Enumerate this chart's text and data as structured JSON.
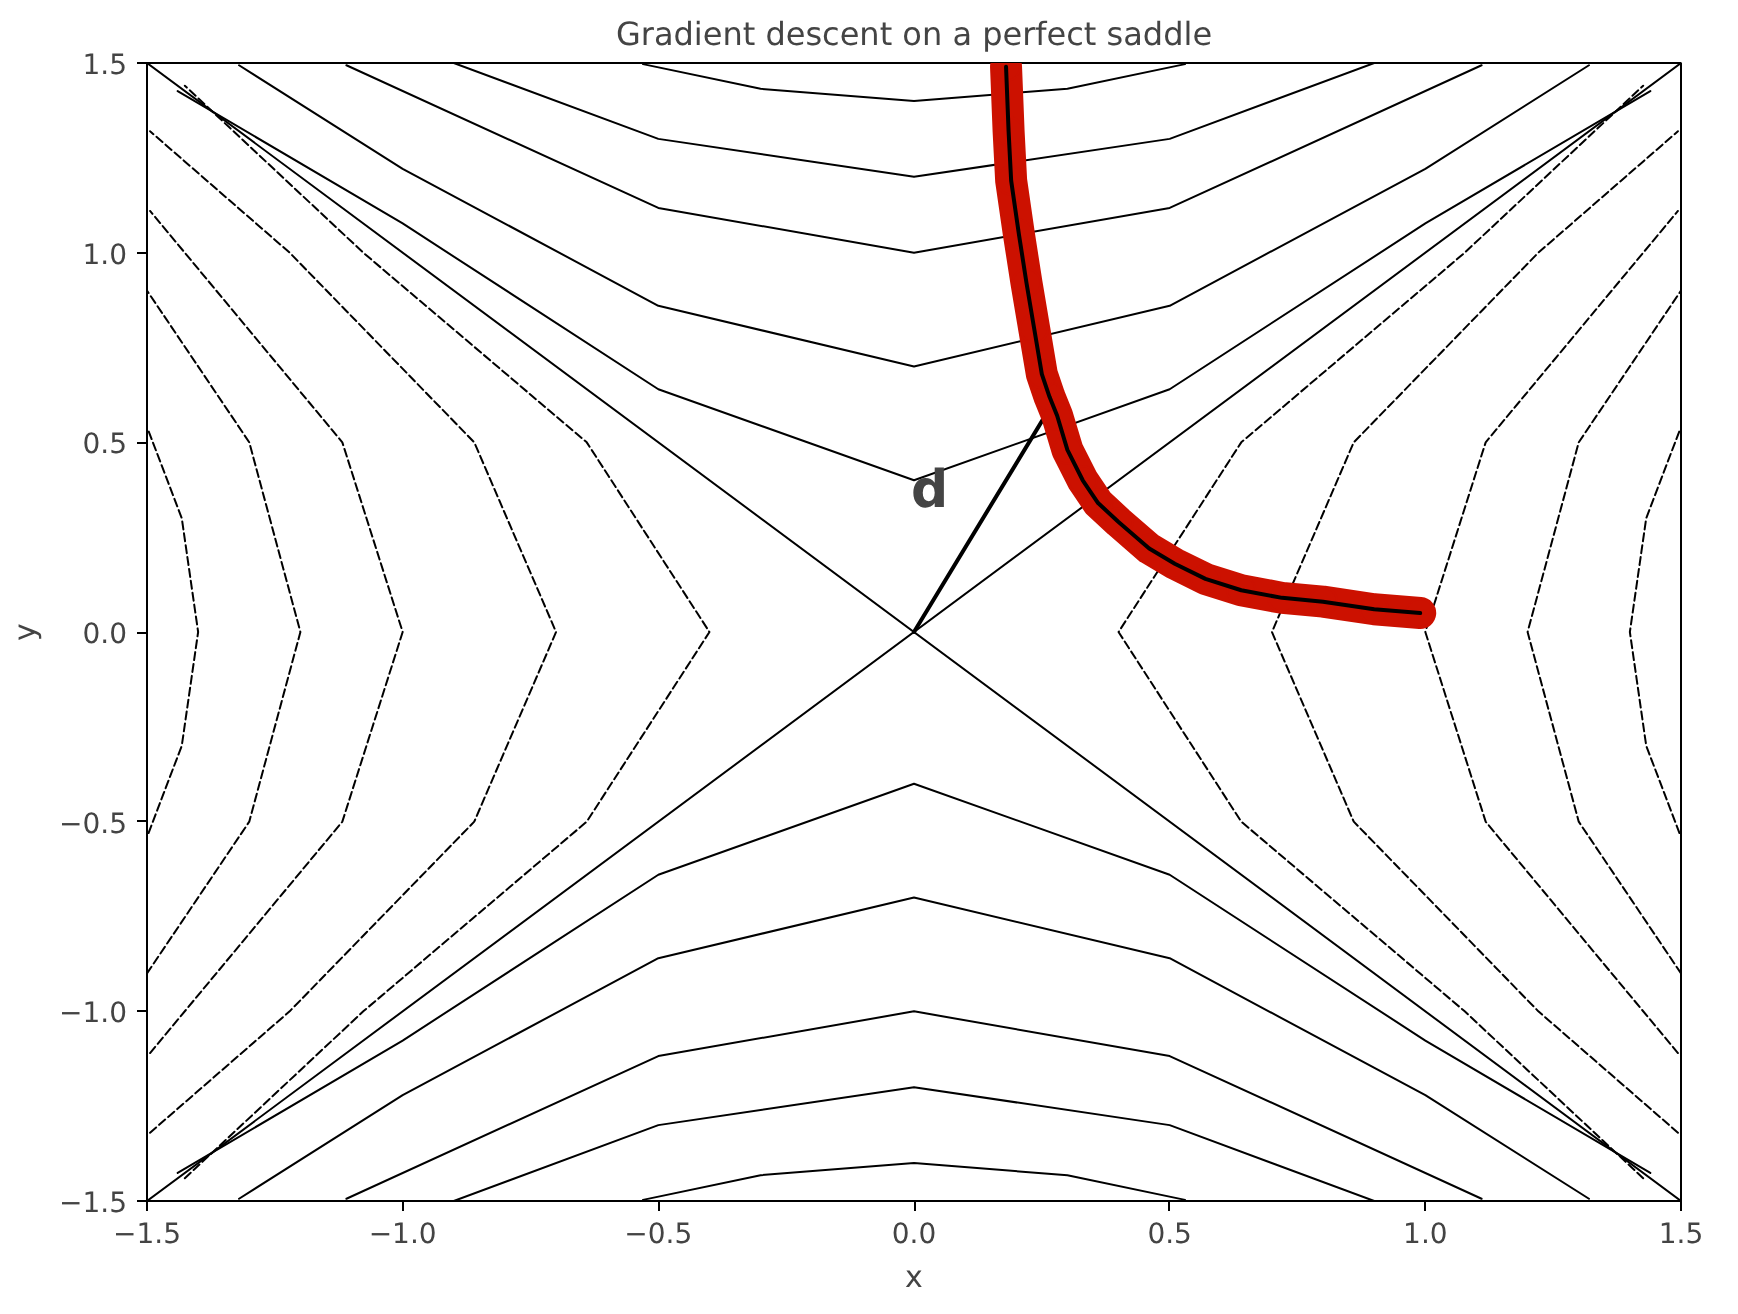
{
  "chart_data": {
    "type": "line",
    "title": "Gradient descent on a perfect saddle",
    "xlabel": "x",
    "ylabel": "y",
    "xlim": [
      -1.5,
      1.5
    ],
    "ylim": [
      -1.5,
      1.5
    ],
    "xticks": [
      {
        "value": -1.5,
        "label": "−1.5"
      },
      {
        "value": -1.0,
        "label": "−1.0"
      },
      {
        "value": -0.5,
        "label": "−0.5"
      },
      {
        "value": 0,
        "label": "0.0"
      },
      {
        "value": 0.5,
        "label": "0.5"
      },
      {
        "value": 1.0,
        "label": "1.0"
      },
      {
        "value": 1.5,
        "label": "1.5"
      }
    ],
    "yticks": [
      {
        "value": -1.5,
        "label": "−1.5"
      },
      {
        "value": -1.0,
        "label": "−1.0"
      },
      {
        "value": -0.5,
        "label": "−0.5"
      },
      {
        "value": 0,
        "label": "0.0"
      },
      {
        "value": 0.5,
        "label": "0.5"
      },
      {
        "value": 1.0,
        "label": "1.0"
      },
      {
        "value": 1.5,
        "label": "1.5"
      }
    ],
    "grid": false,
    "marker": "none",
    "annotations": [
      "d"
    ],
    "series": [
      {
        "color": "#000000",
        "line_style": "solid",
        "x": [
          -1.5,
          1.5
        ],
        "values": [
          -1.5,
          1.5
        ]
      },
      {
        "color": "#000000",
        "line_style": "solid",
        "x": [
          -1.5,
          1.5
        ],
        "values": [
          1.5,
          -1.5
        ]
      },
      {
        "color": "#000000",
        "line_style": "solid",
        "x": [
          -1.44,
          -1,
          -0.5,
          0,
          0.5,
          1,
          1.44
        ],
        "values": [
          1.426,
          1.077,
          0.64,
          0.4,
          0.64,
          1.077,
          1.426
        ]
      },
      {
        "color": "#000000",
        "line_style": "solid",
        "x": [
          -1.44,
          -1,
          -0.5,
          0,
          0.5,
          1,
          1.44
        ],
        "values": [
          -1.426,
          -1.077,
          -0.64,
          -0.4,
          -0.64,
          -1.077,
          -1.426
        ]
      },
      {
        "color": "#000000",
        "line_style": "solid",
        "x": [
          -1.32,
          -1,
          -0.5,
          0,
          0.5,
          1,
          1.32
        ],
        "values": [
          1.494,
          1.221,
          0.86,
          0.7,
          0.86,
          1.221,
          1.494
        ]
      },
      {
        "color": "#000000",
        "line_style": "solid",
        "x": [
          -1.32,
          -1,
          -0.5,
          0,
          0.5,
          1,
          1.32
        ],
        "values": [
          -1.494,
          -1.221,
          -0.86,
          -0.7,
          -0.86,
          -1.221,
          -1.494
        ]
      },
      {
        "color": "#000000",
        "line_style": "solid",
        "x": [
          -1.11,
          -0.5,
          0,
          0.5,
          1.11
        ],
        "values": [
          1.494,
          1.118,
          1.0,
          1.118,
          1.494
        ]
      },
      {
        "color": "#000000",
        "line_style": "solid",
        "x": [
          -1.11,
          -0.5,
          0,
          0.5,
          1.11
        ],
        "values": [
          -1.494,
          -1.118,
          -1.0,
          -1.118,
          -1.494
        ]
      },
      {
        "color": "#000000",
        "line_style": "solid",
        "x": [
          -0.9,
          -0.5,
          0,
          0.5,
          0.9
        ],
        "values": [
          1.5,
          1.3,
          1.2,
          1.3,
          1.5
        ]
      },
      {
        "color": "#000000",
        "line_style": "solid",
        "x": [
          -0.9,
          -0.5,
          0,
          0.5,
          0.9
        ],
        "values": [
          -1.5,
          -1.3,
          -1.2,
          -1.3,
          -1.5
        ]
      },
      {
        "color": "#000000",
        "line_style": "solid",
        "x": [
          -0.53,
          -0.3,
          0,
          0.3,
          0.53
        ],
        "values": [
          1.497,
          1.432,
          1.4,
          1.432,
          1.497
        ]
      },
      {
        "color": "#000000",
        "line_style": "solid",
        "x": [
          -0.53,
          -0.3,
          0,
          0.3,
          0.53
        ],
        "values": [
          -1.497,
          -1.432,
          -1.4,
          -1.432,
          -1.497
        ]
      },
      {
        "color": "#000000",
        "line_style": "dashed",
        "x": [
          1.426,
          1.077,
          0.64,
          0.4,
          0.64,
          1.077,
          1.426
        ],
        "values": [
          -1.44,
          -1,
          -0.5,
          0,
          0.5,
          1,
          1.44
        ]
      },
      {
        "color": "#000000",
        "line_style": "dashed",
        "x": [
          -1.426,
          -1.077,
          -0.64,
          -0.4,
          -0.64,
          -1.077,
          -1.426
        ],
        "values": [
          -1.44,
          -1,
          -0.5,
          0,
          0.5,
          1,
          1.44
        ]
      },
      {
        "color": "#000000",
        "line_style": "dashed",
        "x": [
          1.494,
          1.221,
          0.86,
          0.7,
          0.86,
          1.221,
          1.494
        ],
        "values": [
          -1.32,
          -1,
          -0.5,
          0,
          0.5,
          1,
          1.32
        ]
      },
      {
        "color": "#000000",
        "line_style": "dashed",
        "x": [
          -1.494,
          -1.221,
          -0.86,
          -0.7,
          -0.86,
          -1.221,
          -1.494
        ],
        "values": [
          -1.32,
          -1,
          -0.5,
          0,
          0.5,
          1,
          1.32
        ]
      },
      {
        "color": "#000000",
        "line_style": "dashed",
        "x": [
          1.494,
          1.118,
          1.0,
          1.118,
          1.494
        ],
        "values": [
          -1.11,
          -0.5,
          0,
          0.5,
          1.11
        ]
      },
      {
        "color": "#000000",
        "line_style": "dashed",
        "x": [
          -1.494,
          -1.118,
          -1.0,
          -1.118,
          -1.494
        ],
        "values": [
          -1.11,
          -0.5,
          0,
          0.5,
          1.11
        ]
      },
      {
        "color": "#000000",
        "line_style": "dashed",
        "x": [
          1.5,
          1.3,
          1.2,
          1.3,
          1.5
        ],
        "values": [
          -0.9,
          -0.5,
          0,
          0.5,
          0.9
        ]
      },
      {
        "color": "#000000",
        "line_style": "dashed",
        "x": [
          -1.5,
          -1.3,
          -1.2,
          -1.3,
          -1.5
        ],
        "values": [
          -0.9,
          -0.5,
          0,
          0.5,
          0.9
        ]
      },
      {
        "color": "#000000",
        "line_style": "dashed",
        "x": [
          1.497,
          1.432,
          1.4,
          1.432,
          1.497
        ],
        "values": [
          -0.53,
          -0.3,
          0,
          0.3,
          0.53
        ]
      },
      {
        "color": "#000000",
        "line_style": "dashed",
        "x": [
          -1.497,
          -1.432,
          -1.4,
          -1.432,
          -1.497
        ],
        "values": [
          -0.53,
          -0.3,
          0,
          0.3,
          0.53
        ]
      },
      {
        "color": "#000000",
        "line_style": "solid",
        "x": [
          0,
          0.27
        ],
        "values": [
          0,
          0.6
        ]
      },
      {
        "color": "#cc1100",
        "line_style": "solid",
        "marker": "circle",
        "x": [
          0.99,
          0.9,
          0.8,
          0.72,
          0.64,
          0.57,
          0.51,
          0.46,
          0.4,
          0.36,
          0.33,
          0.3,
          0.28,
          0.265,
          0.25,
          0.235,
          0.22,
          0.205,
          0.19,
          0.185,
          0.18
        ],
        "values": [
          0.05,
          0.06,
          0.08,
          0.09,
          0.11,
          0.14,
          0.18,
          0.22,
          0.29,
          0.34,
          0.4,
          0.48,
          0.57,
          0.62,
          0.68,
          0.8,
          0.92,
          1.05,
          1.19,
          1.32,
          1.49
        ]
      },
      {
        "color": "#000000",
        "line_style": "solid",
        "x": [
          0.99,
          0.9,
          0.8,
          0.72,
          0.64,
          0.57,
          0.51,
          0.46,
          0.4,
          0.36,
          0.33,
          0.3,
          0.28,
          0.265,
          0.25,
          0.235,
          0.22,
          0.205,
          0.19,
          0.185,
          0.18
        ],
        "values": [
          0.05,
          0.06,
          0.08,
          0.09,
          0.11,
          0.14,
          0.18,
          0.22,
          0.29,
          0.34,
          0.4,
          0.48,
          0.57,
          0.62,
          0.68,
          0.8,
          0.92,
          1.05,
          1.19,
          1.32,
          1.49
        ]
      }
    ]
  }
}
